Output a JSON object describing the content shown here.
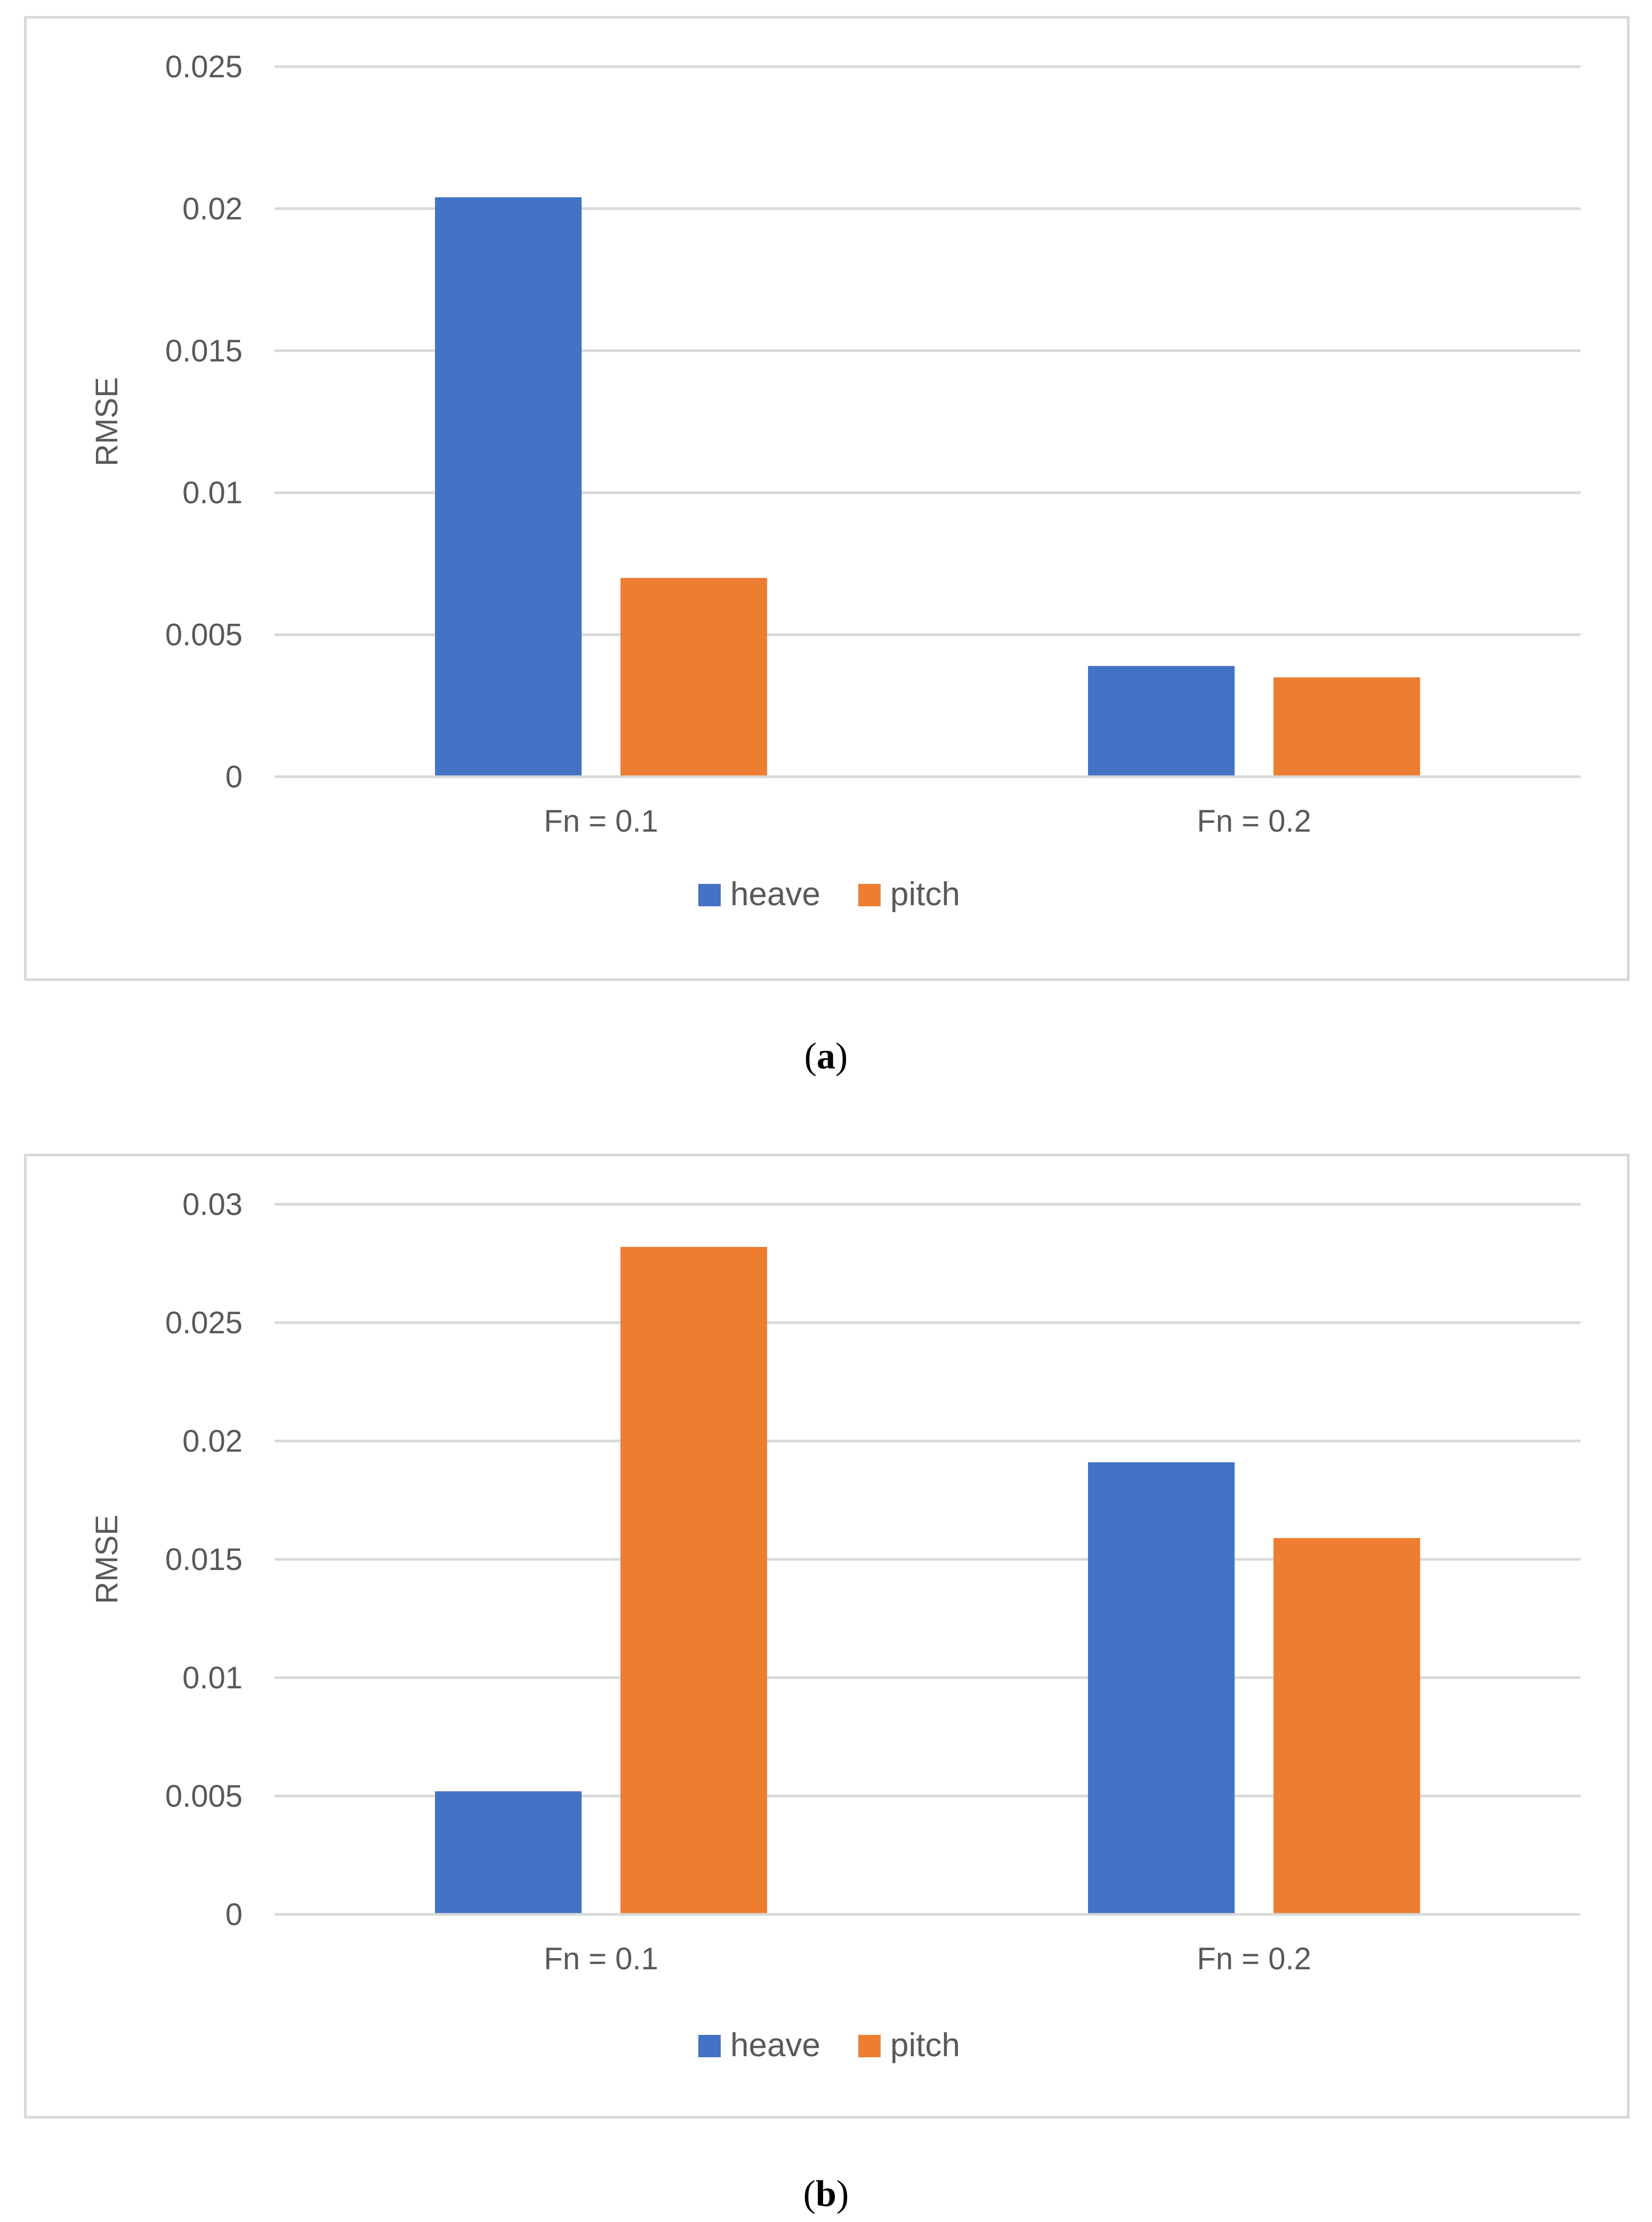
{
  "colors": {
    "heave": "#4472C4",
    "pitch": "#ED7D31",
    "grid": "#d9d9d9",
    "text": "#595959"
  },
  "captions": {
    "a": {
      "open": "(",
      "letter": "a",
      "close": ")"
    },
    "b": {
      "open": "(",
      "letter": "b",
      "close": ")"
    }
  },
  "chart_data": [
    {
      "type": "bar",
      "panel": "a",
      "categories": [
        "Fn = 0.1",
        "Fn = 0.2"
      ],
      "series": [
        {
          "name": "heave",
          "values": [
            0.0204,
            0.0039
          ]
        },
        {
          "name": "pitch",
          "values": [
            0.007,
            0.0035
          ]
        }
      ],
      "ylabel": "RMSE",
      "xlabel": "",
      "ylim": [
        0,
        0.025
      ],
      "yticks": [
        "0",
        "0.005",
        "0.01",
        "0.015",
        "0.02",
        "0.025"
      ],
      "grid": true,
      "legend": "bottom-center"
    },
    {
      "type": "bar",
      "panel": "b",
      "categories": [
        "Fn = 0.1",
        "Fn = 0.2"
      ],
      "series": [
        {
          "name": "heave",
          "values": [
            0.0052,
            0.0191
          ]
        },
        {
          "name": "pitch",
          "values": [
            0.0282,
            0.0159
          ]
        }
      ],
      "ylabel": "RMSE",
      "xlabel": "",
      "ylim": [
        0,
        0.03
      ],
      "yticks": [
        "0",
        "0.005",
        "0.01",
        "0.015",
        "0.02",
        "0.025",
        "0.03"
      ],
      "grid": true,
      "legend": "bottom-center"
    }
  ]
}
